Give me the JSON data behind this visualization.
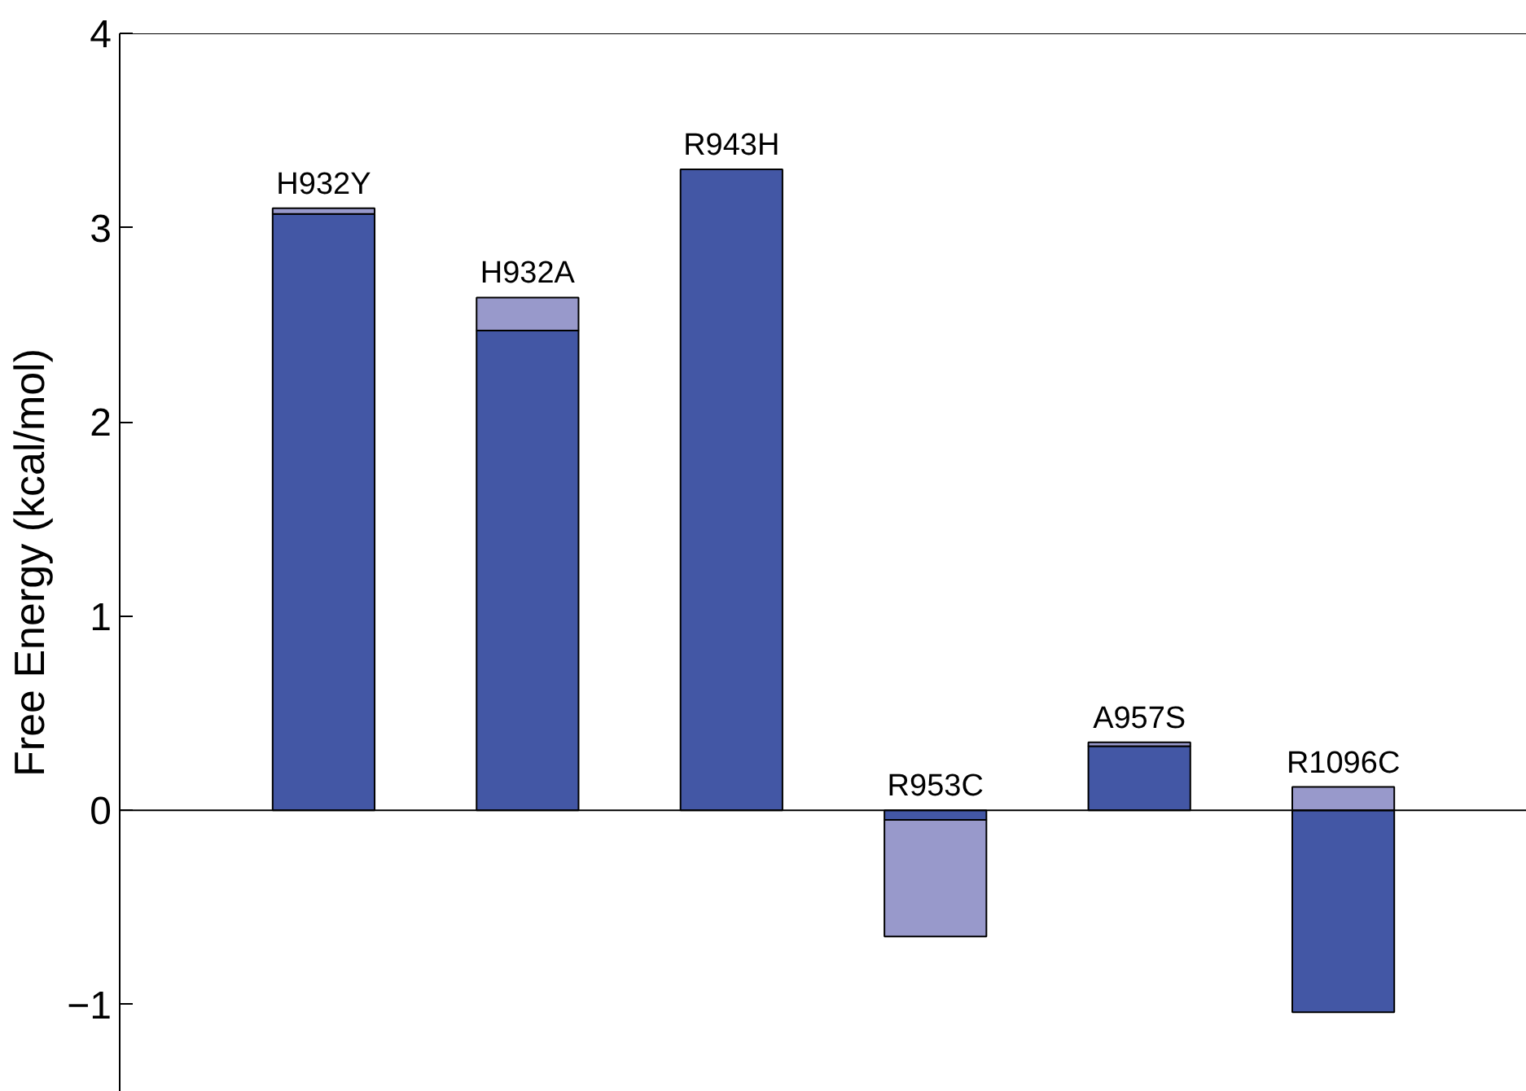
{
  "chart_data": {
    "type": "bar",
    "ylabel": "Free Energy (kcal/mol)",
    "stacked": true,
    "categories": [
      "H932Y",
      "H932A",
      "R943H",
      "R953C",
      "A957S",
      "R1096C"
    ],
    "series": [
      {
        "color": "#4357a5",
        "values": [
          3.07,
          2.47,
          3.3,
          -0.05,
          0.33,
          -1.04
        ]
      },
      {
        "color": "#9899cb",
        "values": [
          0.03,
          0.17,
          null,
          -0.6,
          0.02,
          0.12
        ]
      }
    ],
    "ylim": [
      -1.45,
      4
    ],
    "yticks": [
      {
        "value": -1,
        "label": "−1"
      },
      0,
      1,
      2,
      3,
      4
    ],
    "ref_lines": [
      {
        "axis": "y",
        "value": 0,
        "color": "#000000"
      }
    ],
    "tick_labels": "y",
    "grid": false
  }
}
